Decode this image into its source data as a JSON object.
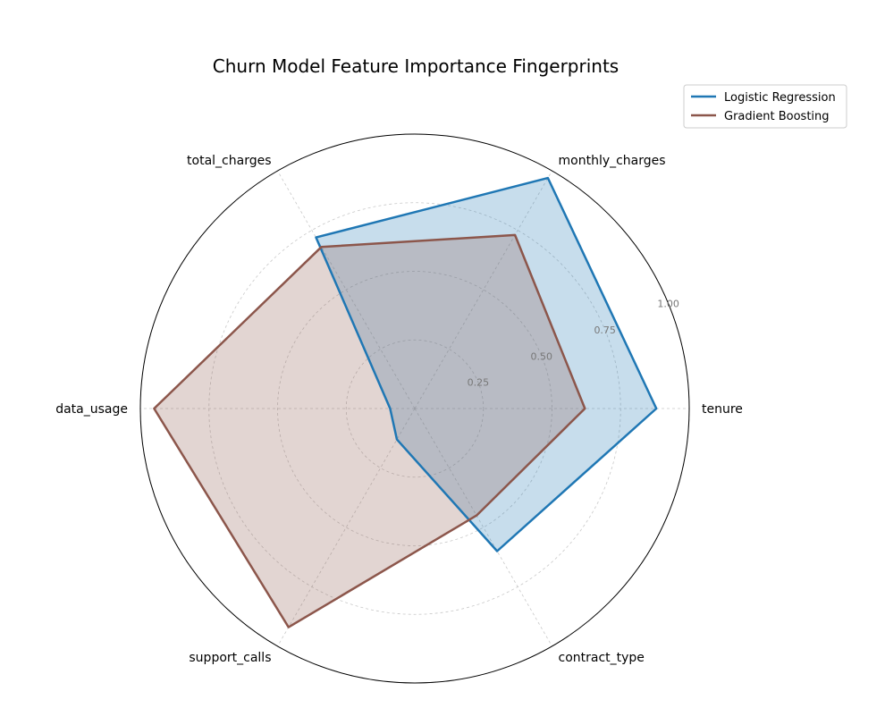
{
  "chart_data": {
    "type": "radar",
    "title": "Churn Model Feature Importance Fingerprints",
    "axes": [
      "tenure",
      "monthly_charges",
      "total_charges",
      "data_usage",
      "support_calls",
      "contract_type"
    ],
    "rlim": [
      0,
      1.0
    ],
    "rticks": [
      0.25,
      0.5,
      0.75,
      1.0
    ],
    "rtick_labels": [
      "0.25",
      "0.50",
      "0.75",
      "1.00"
    ],
    "grid": true,
    "legend_position": "top-right",
    "series": [
      {
        "name": "Logistic Regression",
        "color": "#1f77b4",
        "values": [
          0.88,
          0.97,
          0.72,
          0.09,
          0.13,
          0.6
        ]
      },
      {
        "name": "Gradient Boosting",
        "color": "#8c564b",
        "values": [
          0.62,
          0.73,
          0.68,
          0.95,
          0.92,
          0.45
        ]
      }
    ]
  }
}
